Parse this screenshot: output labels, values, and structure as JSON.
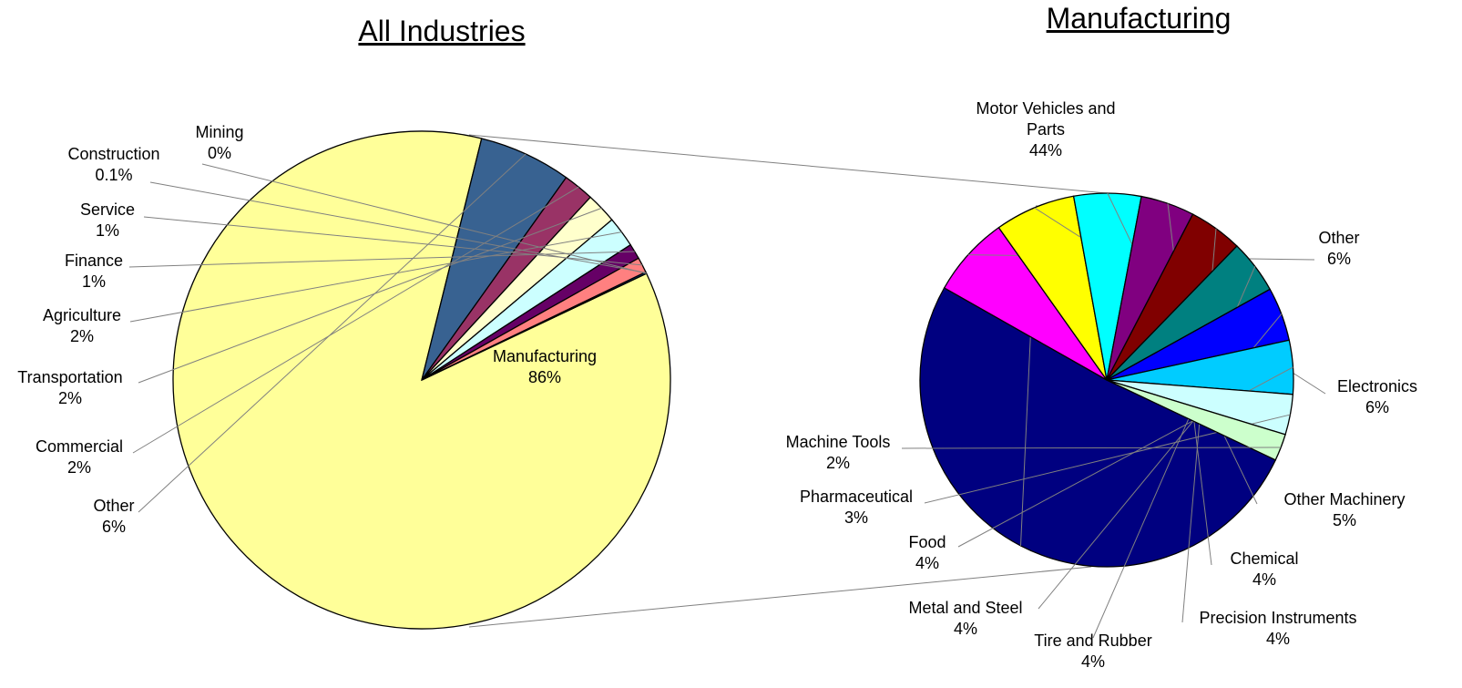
{
  "chart_data": [
    {
      "type": "pie",
      "title": "All Industries",
      "categories": [
        "Manufacturing",
        "Other",
        "Commercial",
        "Transportation",
        "Agriculture",
        "Finance",
        "Service",
        "Construction",
        "Mining"
      ],
      "values": [
        86,
        6,
        2,
        2,
        2,
        1,
        1,
        0.1,
        0
      ],
      "value_labels": [
        "86%",
        "6%",
        "2%",
        "2%",
        "2%",
        "1%",
        "1%",
        "0.1%",
        "0%"
      ],
      "colors": [
        "#ffff99",
        "#386291",
        "#993366",
        "#ffffcc",
        "#ccffff",
        "#660066",
        "#ff8080",
        "#0066cc",
        "#c0c0c0"
      ]
    },
    {
      "type": "pie",
      "title": "Manufacturing",
      "categories": [
        "Motor Vehicles and Parts",
        "Other",
        "Electronics",
        "Other Machinery",
        "Chemical",
        "Precision Instruments",
        "Tire and Rubber",
        "Metal and Steel",
        "Food",
        "Pharmaceutical",
        "Machine Tools"
      ],
      "values": [
        44,
        6,
        6,
        5,
        4,
        4,
        4,
        4,
        4,
        3,
        2
      ],
      "value_labels": [
        "44%",
        "6%",
        "6%",
        "5%",
        "4%",
        "4%",
        "4%",
        "4%",
        "4%",
        "3%",
        "2%"
      ],
      "colors": [
        "#000080",
        "#ff00ff",
        "#ffff00",
        "#00ffff",
        "#800080",
        "#800000",
        "#008080",
        "#0000ff",
        "#00ccff",
        "#ccffff",
        "#ccffcc"
      ]
    }
  ]
}
